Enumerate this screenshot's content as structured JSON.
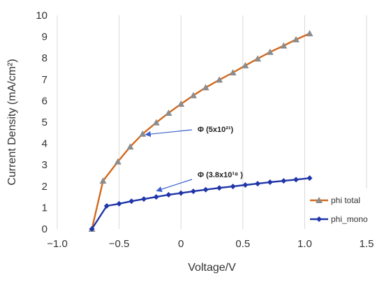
{
  "chart_data": {
    "type": "line",
    "xlabel": "Voltage/V",
    "ylabel": "Current Density (mA/cm²)",
    "xlim": [
      -1.0,
      1.5
    ],
    "ylim": [
      0,
      10
    ],
    "xticks": [
      "−1.0",
      "−0.5",
      "0",
      "0.5",
      "1.0",
      "1.5"
    ],
    "yticks": [
      "0",
      "1",
      "2",
      "3",
      "4",
      "5",
      "6",
      "7",
      "8",
      "9",
      "10"
    ],
    "grid": "vertical",
    "legend": "bottom-right",
    "series": [
      {
        "name": "phi total",
        "color": "#d2691e",
        "marker": "triangle",
        "marker_color": "#8c8c8c",
        "x": [
          -0.72,
          -0.63,
          -0.51,
          -0.41,
          -0.31,
          -0.2,
          -0.1,
          0.0,
          0.1,
          0.2,
          0.31,
          0.42,
          0.52,
          0.62,
          0.72,
          0.83,
          0.93,
          1.04
        ],
        "y": [
          0.0,
          2.25,
          3.15,
          3.85,
          4.45,
          4.98,
          5.43,
          5.85,
          6.25,
          6.62,
          6.98,
          7.32,
          7.65,
          7.97,
          8.28,
          8.58,
          8.87,
          9.15
        ]
      },
      {
        "name": "phi_mono",
        "color": "#1f35a8",
        "marker": "diamond",
        "marker_color": "#1f35a8",
        "x": [
          -0.72,
          -0.6,
          -0.5,
          -0.4,
          -0.3,
          -0.2,
          -0.1,
          0.0,
          0.1,
          0.2,
          0.31,
          0.42,
          0.52,
          0.62,
          0.72,
          0.83,
          0.93,
          1.04
        ],
        "y": [
          0.0,
          1.08,
          1.18,
          1.3,
          1.4,
          1.5,
          1.6,
          1.68,
          1.76,
          1.84,
          1.92,
          1.99,
          2.06,
          2.12,
          2.19,
          2.25,
          2.31,
          2.38
        ]
      }
    ],
    "annotations": [
      {
        "text": "Φ (5x10²¹)",
        "points_to": {
          "x": -0.31,
          "y": 4.45
        }
      },
      {
        "text": "Φ (3.8x10¹⁸ )",
        "points_to": {
          "x": -0.22,
          "y": 1.75
        }
      }
    ]
  }
}
